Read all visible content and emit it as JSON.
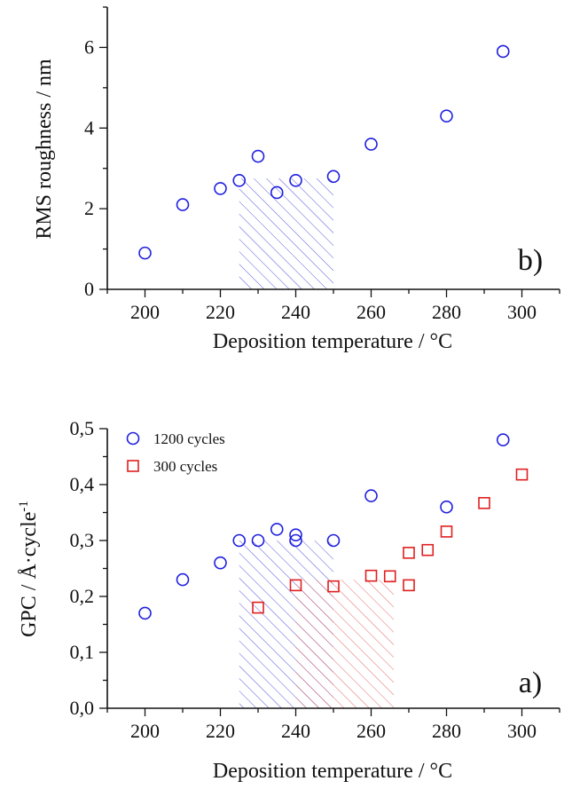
{
  "colors": {
    "series_1200": "#1f1fe0",
    "series_300": "#e01f1f",
    "hatch_blue": "#3a3ad8",
    "hatch_red": "#e05050",
    "axis": "#111111"
  },
  "chart_data": [
    {
      "id": "panel_b",
      "type": "scatter",
      "panel_label": "b)",
      "xlabel": "Deposition temperature / °C",
      "ylabel": "RMS roughness / nm",
      "xlim": [
        190,
        310
      ],
      "ylim": [
        0,
        7
      ],
      "xticks": [
        200,
        220,
        240,
        260,
        280,
        300
      ],
      "xtick_labels": [
        "200",
        "220",
        "240",
        "260",
        "280",
        "300"
      ],
      "yticks": [
        0,
        2,
        4,
        6
      ],
      "ytick_labels": [
        "0",
        "2",
        "4",
        "6"
      ],
      "series": [
        {
          "key": "rms",
          "marker": "circle",
          "color": "#1f1fe0",
          "x": [
            200,
            210,
            220,
            225,
            230,
            235,
            240,
            250,
            260,
            280,
            295
          ],
          "y": [
            0.9,
            2.1,
            2.5,
            2.7,
            3.3,
            2.4,
            2.7,
            2.8,
            3.6,
            4.3,
            5.9
          ]
        }
      ],
      "hatched_regions": [
        {
          "x": [
            225,
            250
          ],
          "y": [
            0,
            2.75
          ],
          "color": "#3a3ad8"
        }
      ]
    },
    {
      "id": "panel_a",
      "type": "scatter",
      "panel_label": "a)",
      "xlabel": "Deposition temperature / °C",
      "ylabel": "GPC / Å·cycle",
      "ylabel_superscript": "-1",
      "xlim": [
        190,
        310
      ],
      "ylim": [
        0,
        0.5
      ],
      "xticks": [
        200,
        220,
        240,
        260,
        280,
        300
      ],
      "xtick_labels": [
        "200",
        "220",
        "240",
        "260",
        "280",
        "300"
      ],
      "yticks": [
        0,
        0.1,
        0.2,
        0.3,
        0.4,
        0.5
      ],
      "ytick_labels": [
        "0,0",
        "0,1",
        "0,2",
        "0,3",
        "0,4",
        "0,5"
      ],
      "legend_position": "top-left",
      "series": [
        {
          "key": "c1200",
          "name": "1200 cycles",
          "marker": "circle",
          "color": "#1f1fe0",
          "x": [
            200,
            210,
            220,
            225,
            230,
            235,
            240,
            240,
            250,
            260,
            280,
            295
          ],
          "y": [
            0.17,
            0.23,
            0.26,
            0.3,
            0.3,
            0.32,
            0.31,
            0.3,
            0.3,
            0.38,
            0.36,
            0.48
          ]
        },
        {
          "key": "c300",
          "name": "300 cycles",
          "marker": "square",
          "color": "#e01f1f",
          "x": [
            230,
            240,
            250,
            260,
            265,
            270,
            270,
            275,
            280,
            290,
            300
          ],
          "y": [
            0.18,
            0.22,
            0.218,
            0.237,
            0.236,
            0.278,
            0.22,
            0.283,
            0.316,
            0.367,
            0.418
          ]
        }
      ],
      "hatched_regions": [
        {
          "x": [
            225,
            250
          ],
          "y": [
            0,
            0.3
          ],
          "color": "#3a3ad8"
        },
        {
          "x": [
            240,
            266
          ],
          "y": [
            0,
            0.23
          ],
          "color": "#e05050"
        }
      ]
    }
  ]
}
